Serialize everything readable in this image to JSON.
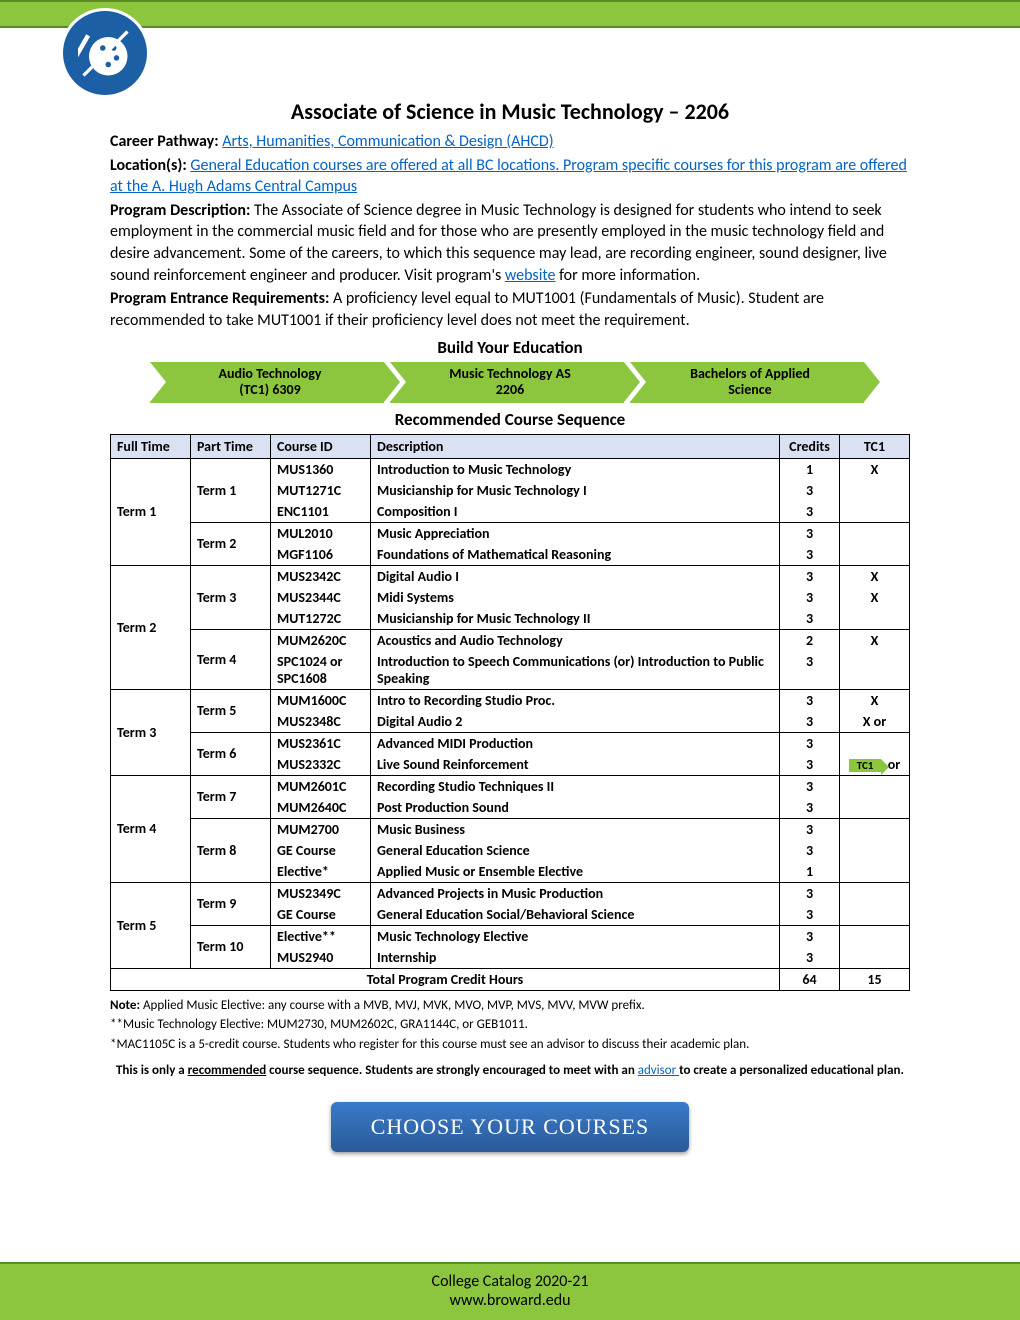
{
  "title": "Associate of Science in Music Technology – 2206",
  "header": {
    "careerPathwayLabel": "Career Pathway:",
    "careerPathwayLink": "Arts, Humanities, Communication & Design (AHCD)",
    "locationsLabel": "Location(s):",
    "locationsLink": "General Education courses are offered at all BC locations. Program specific courses for this program are offered at the A. Hugh Adams Central Campus",
    "descLabel": "Program Description:",
    "descText": "The Associate of Science degree in Music Technology is designed for students who intend to seek employment in the commercial music field and for those who are presently employed in the music technology field and desire advancement. Some of the careers, to which this sequence may lead, are recording engineer, sound designer, live sound reinforcement engineer and producer. Visit program's ",
    "descWebsite": "website",
    "descTextAfter": " for more information.",
    "entranceLabel": "Program Entrance Requirements:",
    "entranceText": "A proficiency level equal to MUT1001 (Fundamentals of Music). Student are recommended to take MUT1001 if their proficiency level does not meet the requirement."
  },
  "sections": {
    "build": "Build Your Education",
    "recommended": "Recommended Course Sequence"
  },
  "pathway": [
    {
      "line1": "Audio Technology",
      "line2": "(TC1) 6309"
    },
    {
      "line1": "Music Technology  AS",
      "line2": "2206"
    },
    {
      "line1": "Bachelors of Applied",
      "line2": "Science"
    }
  ],
  "tableHeaders": {
    "fullTime": "Full Time",
    "partTime": "Part Time",
    "courseId": "Course ID",
    "description": "Description",
    "credits": "Credits",
    "tc1": "TC1"
  },
  "courses": [
    {
      "ft": "Term 1",
      "ftRows": 5,
      "pt": "Term 1",
      "ptRows": 3,
      "id": "MUS1360",
      "desc": "Introduction to Music Technology",
      "cr": "1",
      "tc": "X"
    },
    {
      "id": "MUT1271C",
      "desc": "Musicianship for Music Technology I",
      "cr": "3",
      "tc": ""
    },
    {
      "id": "ENC1101",
      "desc": "Composition I",
      "cr": "3",
      "tc": ""
    },
    {
      "pt": "Term 2",
      "ptRows": 2,
      "id": "MUL2010",
      "desc": "Music Appreciation",
      "cr": "3",
      "tc": ""
    },
    {
      "id": "MGF1106",
      "desc": "Foundations of Mathematical Reasoning",
      "cr": "3",
      "tc": "",
      "groupEnd": true
    },
    {
      "ft": "Term 2",
      "ftRows": 5,
      "pt": "Term 3",
      "ptRows": 3,
      "id": "MUS2342C",
      "desc": "Digital Audio I",
      "cr": "3",
      "tc": "X"
    },
    {
      "id": "MUS2344C",
      "desc": "Midi Systems",
      "cr": "3",
      "tc": "X"
    },
    {
      "id": "MUT1272C",
      "desc": "Musicianship for Music Technology II",
      "cr": "3",
      "tc": ""
    },
    {
      "pt": "Term 4",
      "ptRows": 2,
      "id": "MUM2620C",
      "desc": "Acoustics and Audio Technology",
      "cr": "2",
      "tc": "X"
    },
    {
      "id": "SPC1024 or SPC1608",
      "desc": "Introduction to Speech Communications (or) Introduction to Public Speaking",
      "cr": "3",
      "tc": "",
      "groupEnd": true
    },
    {
      "ft": "Term 3",
      "ftRows": 4,
      "pt": "Term 5",
      "ptRows": 2,
      "id": "MUM1600C",
      "desc": "Intro to Recording Studio Proc.",
      "cr": "3",
      "tc": "X"
    },
    {
      "id": "MUS2348C",
      "desc": "Digital Audio 2",
      "cr": "3",
      "tc": "X or"
    },
    {
      "pt": "Term 6",
      "ptRows": 2,
      "id": "MUS2361C",
      "desc": "Advanced MIDI Production",
      "cr": "3",
      "tc": ""
    },
    {
      "id": "MUS2332C",
      "desc": "Live Sound Reinforcement",
      "cr": "3",
      "tc": "badge",
      "groupEnd": true
    },
    {
      "ft": "Term 4",
      "ftRows": 5,
      "pt": "Term 7",
      "ptRows": 2,
      "id": "MUM2601C",
      "desc": "Recording Studio Techniques II",
      "cr": "3",
      "tc": ""
    },
    {
      "id": "MUM2640C",
      "desc": "Post Production Sound",
      "cr": "3",
      "tc": ""
    },
    {
      "pt": "Term 8",
      "ptRows": 3,
      "id": "MUM2700",
      "desc": "Music Business",
      "cr": "3",
      "tc": ""
    },
    {
      "id": "GE Course",
      "desc": "General Education Science",
      "cr": "3",
      "tc": ""
    },
    {
      "id": "Elective*",
      "desc": "Applied Music or Ensemble Elective",
      "cr": "1",
      "tc": "",
      "groupEnd": true
    },
    {
      "ft": "Term 5",
      "ftRows": 4,
      "pt": "Term 9",
      "ptRows": 2,
      "id": "MUS2349C",
      "desc": "Advanced Projects in Music Production",
      "cr": "3",
      "tc": ""
    },
    {
      "id": "GE Course",
      "desc": "General Education Social/Behavioral Science",
      "cr": "3",
      "tc": ""
    },
    {
      "pt": "Term 10",
      "ptRows": 2,
      "id": "Elective**",
      "desc": "Music Technology Elective",
      "cr": "3",
      "tc": ""
    },
    {
      "id": "MUS2940",
      "desc": "Internship",
      "cr": "3",
      "tc": "",
      "groupEnd": true
    }
  ],
  "totals": {
    "label": "Total Program Credit Hours",
    "credits": "64",
    "tc1": "15"
  },
  "tc1Badge": {
    "label": "TC1",
    "suffix": "or"
  },
  "notes": {
    "label": "Note:",
    "n1": "Applied Music Elective: any course with a MVB, MVJ, MVK, MVO, MVP, MVS, MVV, MVW prefix.",
    "n2": "**Music Technology Elective: MUM2730, MUM2602C, GRA1144C, or GEB1011.",
    "n3": "*MAC1105C is a 5-credit course.  Students who register for this course must see an advisor to discuss their academic plan."
  },
  "recommendNote": {
    "pre": "This is only a ",
    "underlined": "recommended",
    "mid": " course sequence. Students are strongly encouraged to meet with an ",
    "advisor": "advisor ",
    "post": "to create a personalized educational plan."
  },
  "cta": "CHOOSE YOUR COURSES",
  "footer": {
    "line1": "College Catalog 2020-21",
    "line2": "www.broward.edu"
  }
}
